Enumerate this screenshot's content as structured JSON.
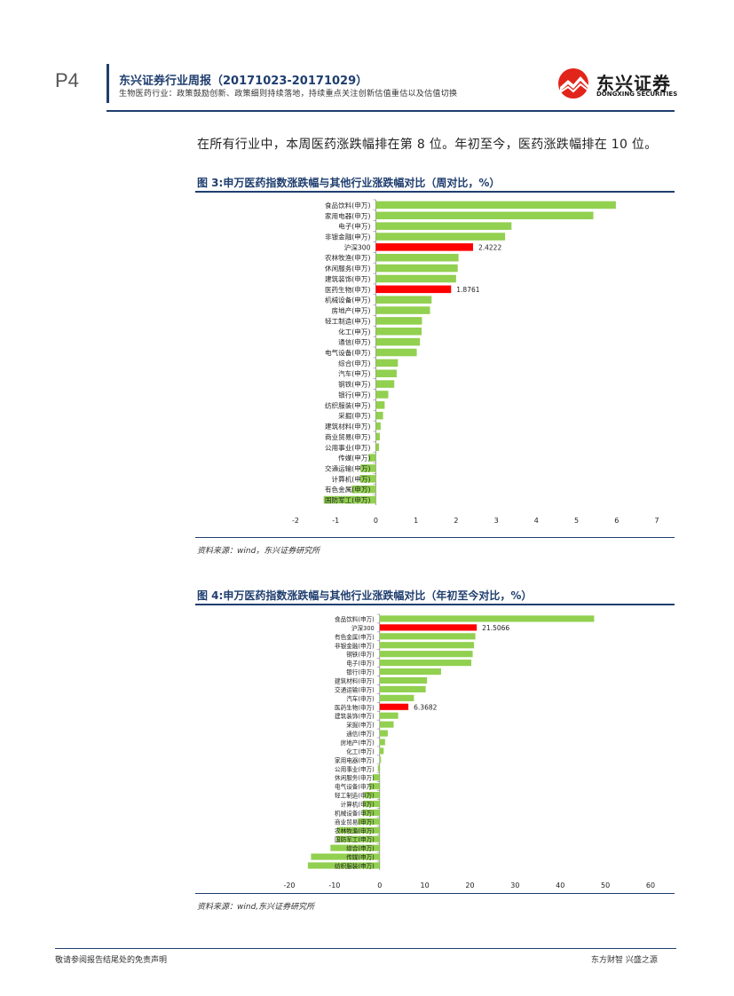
{
  "header": {
    "page": "P4",
    "title": "东兴证券行业周报（20171023-20171029）",
    "subtitle": "生物医药行业：政策鼓励创新、政策细则持续落地，持续重点关注创新估值重估以及估值切换",
    "logo_cn": "东兴证券",
    "logo_en": "DONGXING SECURITIES"
  },
  "body_text": "在所有行业中，本周医药涨跌幅排在第 8 位。年初至今，医药涨跌幅排在 10 位。",
  "figures": [
    {
      "title": "图 3:申万医药指数涨跌幅与其他行业涨跌幅对比（周对比，%）",
      "source": "资料来源：wind，东兴证券研究所"
    },
    {
      "title": "图 4:申万医药指数涨跌幅与其他行业涨跌幅对比（年初至今对比，%）",
      "source": "资料来源：wind,东兴证券研究所"
    }
  ],
  "footer": {
    "left": "敬请参阅报告结尾处的免责声明",
    "right": "东方财智 兴盛之源"
  },
  "colors": {
    "bar": "#92d050",
    "highlight": "#ff0000",
    "accent": "#1f3e6f"
  },
  "chart_data": [
    {
      "type": "bar",
      "orientation": "horizontal",
      "categories": [
        "食品饮料(申万)",
        "家用电器(申万)",
        "电子(申万)",
        "非银金融(申万)",
        "沪深300",
        "农林牧渔(申万)",
        "休闲服务(申万)",
        "建筑装饰(申万)",
        "医药生物(申万)",
        "机械设备(申万)",
        "房地产(申万)",
        "轻工制造(申万)",
        "化工(申万)",
        "通信(申万)",
        "电气设备(申万)",
        "综合(申万)",
        "汽车(申万)",
        "钢铁(申万)",
        "银行(申万)",
        "纺织服装(申万)",
        "采掘(申万)",
        "建筑材料(申万)",
        "商业贸易(申万)",
        "公用事业(申万)",
        "传媒(申万)",
        "交通运输(申万)",
        "计算机(申万)",
        "有色金属(申万)",
        "国防军工(申万)"
      ],
      "values": [
        5.98,
        5.42,
        3.38,
        3.22,
        2.4222,
        2.06,
        2.04,
        2.0,
        1.8761,
        1.39,
        1.35,
        1.15,
        1.14,
        1.1,
        1.02,
        0.55,
        0.52,
        0.46,
        0.31,
        0.22,
        0.18,
        0.12,
        0.1,
        0.08,
        -0.18,
        -0.38,
        -0.4,
        -0.6,
        -1.3
      ],
      "highlight": [
        "沪深300",
        "医药生物(申万)"
      ],
      "data_labels": {
        "沪深300": "2.4222",
        "医药生物(申万)": "1.8761"
      },
      "xlim": [
        -2,
        7
      ],
      "xticks": [
        "-2",
        "-1",
        "0",
        "1",
        "2",
        "3",
        "4",
        "5",
        "6",
        "7"
      ]
    },
    {
      "type": "bar",
      "orientation": "horizontal",
      "categories": [
        "食品饮料(申万)",
        "沪深300",
        "有色金属(申万)",
        "非银金融(申万)",
        "钢铁(申万)",
        "电子(申万)",
        "银行(申万)",
        "建筑材料(申万)",
        "交通运输(申万)",
        "汽车(申万)",
        "医药生物(申万)",
        "建筑装饰(申万)",
        "采掘(申万)",
        "通信(申万)",
        "房地产(申万)",
        "化工(申万)",
        "家用电器(申万)",
        "公用事业(申万)",
        "休闲服务(申万)",
        "电气设备(申万)",
        "轻工制造(申万)",
        "计算机(申万)",
        "机械设备(申万)",
        "商业贸易(申万)",
        "农林牧渔(申万)",
        "国防军工(申万)",
        "综合(申万)",
        "传媒(申万)",
        "纺织服装(申万)"
      ],
      "values": [
        47.5,
        21.5066,
        21.2,
        20.9,
        20.6,
        20.3,
        13.6,
        10.5,
        10.2,
        7.6,
        6.3682,
        4.1,
        3.1,
        1.8,
        1.2,
        0.9,
        0.3,
        -0.4,
        -1.5,
        -2.3,
        -3.4,
        -3.6,
        -3.8,
        -4.8,
        -9.4,
        -9.6,
        -10.9,
        -15.2,
        -15.9
      ],
      "highlight": [
        "沪深300",
        "医药生物(申万)"
      ],
      "data_labels": {
        "沪深300": "21.5066",
        "医药生物(申万)": "6.3682"
      },
      "xlim": [
        -20,
        60
      ],
      "xticks": [
        "-20",
        "-10",
        "0",
        "10",
        "20",
        "30",
        "40",
        "50",
        "60"
      ]
    }
  ]
}
